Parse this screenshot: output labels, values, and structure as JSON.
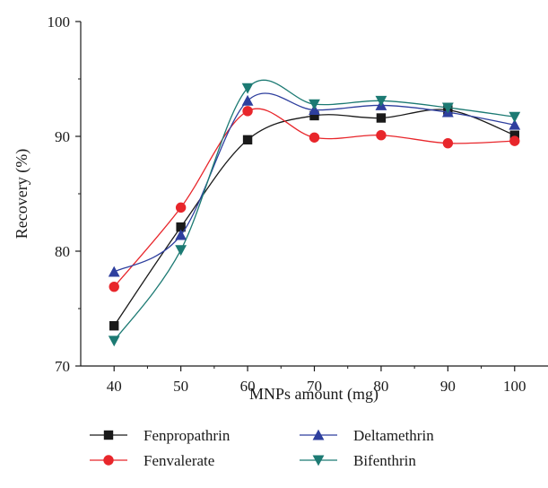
{
  "chart_data": {
    "type": "line",
    "title": "",
    "xlabel": "MNPs amount (mg)",
    "ylabel": "Recovery (%)",
    "x": [
      40,
      50,
      60,
      70,
      80,
      90,
      100
    ],
    "xlim": [
      35,
      105
    ],
    "ylim": [
      70,
      100
    ],
    "yticks": [
      70,
      80,
      90,
      100
    ],
    "grid": false,
    "legend_position": "bottom",
    "series": [
      {
        "name": "Fenpropathrin",
        "color": "#1a1a1a",
        "marker": "square",
        "values": [
          73.5,
          82.1,
          89.7,
          91.8,
          91.6,
          92.3,
          90.1
        ]
      },
      {
        "name": "Fenvalerate",
        "color": "#e8262b",
        "marker": "circle",
        "values": [
          76.9,
          83.8,
          92.2,
          89.9,
          90.1,
          89.4,
          89.6
        ]
      },
      {
        "name": "Deltamethrin",
        "color": "#2e3f9e",
        "marker": "triangle-up",
        "values": [
          78.2,
          81.4,
          93.1,
          92.3,
          92.7,
          92.1,
          91.0
        ]
      },
      {
        "name": "Bifenthrin",
        "color": "#1c7a73",
        "marker": "triangle-down",
        "values": [
          72.2,
          80.1,
          94.2,
          92.8,
          93.1,
          92.5,
          91.7
        ]
      }
    ]
  }
}
